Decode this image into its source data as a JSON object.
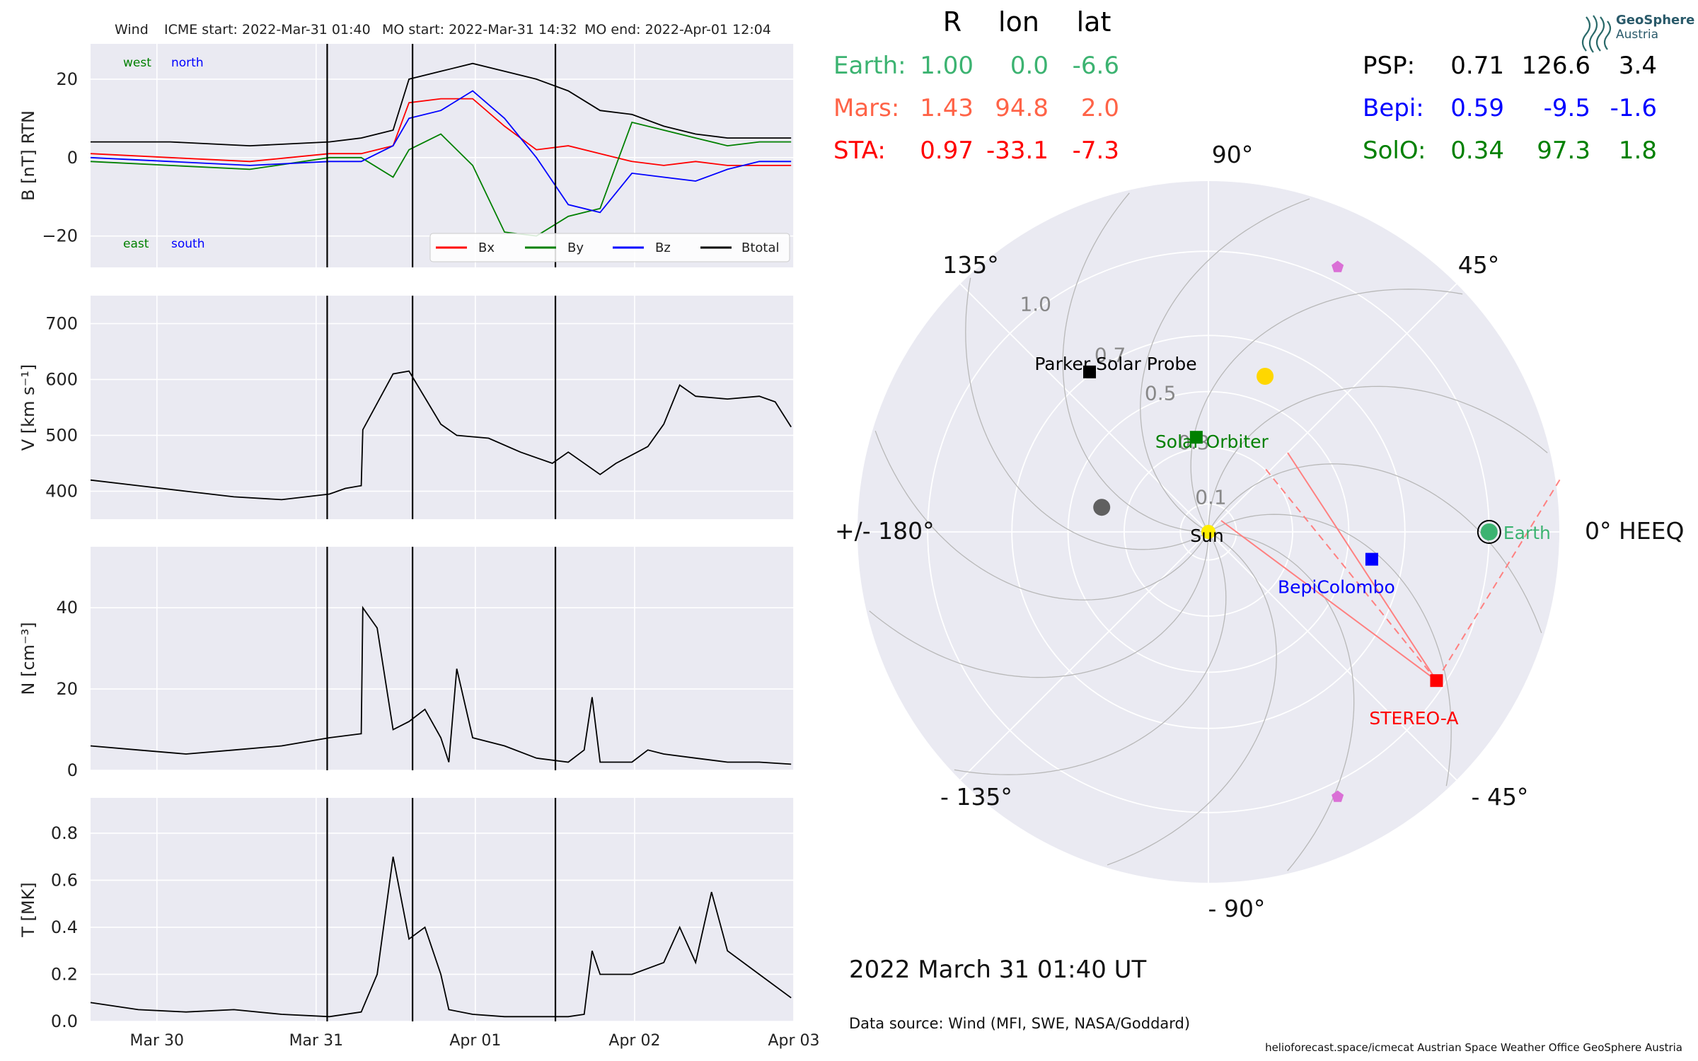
{
  "figure": {
    "header": {
      "spacecraft": "Wind",
      "icme_start": "ICME start: 2022-Mar-31 01:40",
      "mo_start": "MO start: 2022-Mar-31 14:32",
      "mo_end": "MO end: 2022-Apr-01 12:04"
    },
    "date_ticks": [
      "Mar 30",
      "Mar 31",
      "Apr 01",
      "Apr 02",
      "Apr 03"
    ],
    "event_lines": [
      "2022-03-31T01:40",
      "2022-03-31T14:32",
      "2022-04-01T12:04"
    ],
    "timestamp": "2022 March 31  01:40 UT",
    "data_source": "Data source: Wind (MFI, SWE, NASA/Goddard)",
    "footer": "helioforecast.space/icmecat   Austrian Space Weather Office   GeoSphere Austria",
    "logo": {
      "line1": "GeoSphere",
      "line2": "Austria"
    }
  },
  "position_table": {
    "headers": [
      "R",
      "lon",
      "lat"
    ],
    "rows_left": [
      {
        "name": "Earth:",
        "R": "1.00",
        "lon": "0.0",
        "lat": "-6.6",
        "color": "#3cb371"
      },
      {
        "name": "Mars:",
        "R": "1.43",
        "lon": "94.8",
        "lat": "2.0",
        "color": "#ff6347"
      },
      {
        "name": "STA:",
        "R": "0.97",
        "lon": "-33.1",
        "lat": "-7.3",
        "color": "#ff0000"
      }
    ],
    "rows_right": [
      {
        "name": "PSP:",
        "R": "0.71",
        "lon": "126.6",
        "lat": "3.4",
        "color": "#000000"
      },
      {
        "name": "Bepi:",
        "R": "0.59",
        "lon": "-9.5",
        "lat": "-1.6",
        "color": "#0000ff"
      },
      {
        "name": "SolO:",
        "R": "0.34",
        "lon": "97.3",
        "lat": "1.8",
        "color": "#008000"
      }
    ]
  },
  "chart_data": [
    {
      "type": "line",
      "ylabel": "B [nT] RTN",
      "ylim": [
        -28,
        29
      ],
      "yticks": [
        "20",
        "0",
        "−20"
      ],
      "corner_labels": {
        "west": "west",
        "north": "north",
        "east": "east",
        "south": "south"
      },
      "legend": [
        "Bx",
        "By",
        "Bz",
        "Btotal"
      ],
      "xrange": [
        "2022-03-29T14:00",
        "2022-04-03T00:00"
      ],
      "series": [
        {
          "name": "Bx",
          "color": "#ff0000",
          "x_days": [
            0,
            0.5,
            1,
            1.5,
            1.7,
            1.9,
            2,
            2.2,
            2.4,
            2.6,
            2.8,
            3,
            3.2,
            3.4,
            3.6,
            3.8,
            4,
            4.2,
            4.4
          ],
          "values": [
            1,
            0,
            -1,
            1,
            1,
            3,
            14,
            15,
            15,
            8,
            2,
            3,
            1,
            -1,
            -2,
            -1,
            -2,
            -2,
            -2
          ]
        },
        {
          "name": "By",
          "color": "#008000",
          "x_days": [
            0,
            0.5,
            1,
            1.5,
            1.7,
            1.9,
            2,
            2.2,
            2.4,
            2.6,
            2.8,
            3,
            3.2,
            3.4,
            3.6,
            3.8,
            4,
            4.2,
            4.4
          ],
          "values": [
            -1,
            -2,
            -3,
            0,
            0,
            -5,
            2,
            6,
            -2,
            -19,
            -20,
            -15,
            -13,
            9,
            7,
            5,
            3,
            4,
            4
          ]
        },
        {
          "name": "Bz",
          "color": "#0000ff",
          "x_days": [
            0,
            0.5,
            1,
            1.5,
            1.7,
            1.9,
            2,
            2.2,
            2.4,
            2.6,
            2.8,
            3,
            3.2,
            3.4,
            3.6,
            3.8,
            4,
            4.2,
            4.4
          ],
          "values": [
            0,
            -1,
            -2,
            -1,
            -1,
            3,
            10,
            12,
            17,
            10,
            0,
            -12,
            -14,
            -4,
            -5,
            -6,
            -3,
            -1,
            -1
          ]
        },
        {
          "name": "Btotal",
          "color": "#000000",
          "x_days": [
            0,
            0.5,
            1,
            1.5,
            1.7,
            1.9,
            2,
            2.2,
            2.4,
            2.6,
            2.8,
            3,
            3.2,
            3.4,
            3.6,
            3.8,
            4,
            4.2,
            4.4
          ],
          "values": [
            4,
            4,
            3,
            4,
            5,
            7,
            20,
            22,
            24,
            22,
            20,
            17,
            12,
            11,
            8,
            6,
            5,
            5,
            5
          ]
        }
      ]
    },
    {
      "type": "line",
      "ylabel": "V [km s⁻¹]",
      "ylim": [
        350,
        750
      ],
      "yticks": [
        "700",
        "600",
        "500",
        "400"
      ],
      "series": [
        {
          "name": "",
          "color": "#000000",
          "x_days": [
            0,
            0.3,
            0.6,
            0.9,
            1.2,
            1.5,
            1.6,
            1.7,
            1.71,
            1.9,
            2.0,
            2.2,
            2.3,
            2.5,
            2.7,
            2.9,
            3.0,
            3.2,
            3.3,
            3.5,
            3.6,
            3.7,
            3.8,
            4.0,
            4.2,
            4.3,
            4.4
          ],
          "values": [
            420,
            410,
            400,
            390,
            385,
            395,
            405,
            410,
            510,
            610,
            615,
            520,
            500,
            495,
            470,
            450,
            470,
            430,
            450,
            480,
            520,
            590,
            570,
            565,
            570,
            560,
            515
          ]
        }
      ]
    },
    {
      "type": "line",
      "ylabel": "N [cm⁻³]",
      "ylim": [
        0,
        55
      ],
      "yticks": [
        "40",
        "20",
        "0"
      ],
      "series": [
        {
          "name": "",
          "color": "#000000",
          "x_days": [
            0,
            0.3,
            0.6,
            0.9,
            1.2,
            1.5,
            1.7,
            1.71,
            1.8,
            1.9,
            2.0,
            2.1,
            2.2,
            2.25,
            2.3,
            2.4,
            2.6,
            2.8,
            3.0,
            3.1,
            3.15,
            3.2,
            3.4,
            3.5,
            3.6,
            3.8,
            4.0,
            4.2,
            4.4
          ],
          "values": [
            6,
            5,
            4,
            5,
            6,
            8,
            9,
            40,
            35,
            10,
            12,
            15,
            8,
            2,
            25,
            8,
            6,
            3,
            2,
            5,
            18,
            2,
            2,
            5,
            4,
            3,
            2,
            2,
            1.5
          ]
        }
      ]
    },
    {
      "type": "line",
      "ylabel": "T [MK]",
      "ylim": [
        0,
        0.95
      ],
      "yticks": [
        "0.8",
        "0.6",
        "0.4",
        "0.2",
        "0.0"
      ],
      "series": [
        {
          "name": "",
          "color": "#000000",
          "x_days": [
            0,
            0.3,
            0.6,
            0.9,
            1.2,
            1.5,
            1.7,
            1.8,
            1.9,
            2.0,
            2.1,
            2.2,
            2.25,
            2.4,
            2.6,
            2.8,
            3.0,
            3.1,
            3.15,
            3.2,
            3.4,
            3.6,
            3.7,
            3.8,
            3.9,
            4.0,
            4.2,
            4.4
          ],
          "values": [
            0.08,
            0.05,
            0.04,
            0.05,
            0.03,
            0.02,
            0.04,
            0.2,
            0.7,
            0.35,
            0.4,
            0.2,
            0.05,
            0.03,
            0.02,
            0.02,
            0.02,
            0.03,
            0.3,
            0.2,
            0.2,
            0.25,
            0.4,
            0.25,
            0.55,
            0.3,
            0.2,
            0.1
          ]
        }
      ]
    },
    {
      "type": "scatter",
      "subtype": "polar",
      "angle_labels": [
        "0° HEEQ",
        "45°",
        "90°",
        "135°",
        "+/- 180°",
        "- 135°",
        "- 90°",
        "- 45°"
      ],
      "radial_labels": [
        "1.0",
        "0.7",
        "0.5",
        "0.3",
        "0.1"
      ],
      "rmax": 1.25,
      "bodies": [
        {
          "name": "Sun",
          "r": 0.0,
          "lon": 0,
          "shape": "circle",
          "color": "#ffee00"
        },
        {
          "name": "Earth",
          "r": 1.0,
          "lon": 0.0,
          "shape": "circle",
          "color": "#3cb371"
        },
        {
          "name": "",
          "r": 0.59,
          "lon": 70,
          "shape": "circle",
          "color": "#ffd700"
        },
        {
          "name": "",
          "r": 0.39,
          "lon": 167,
          "shape": "circle",
          "color": "#606060"
        },
        {
          "name": "",
          "r": 1.05,
          "lon": 64,
          "shape": "pentagon",
          "color": "#da70d6"
        },
        {
          "name": "",
          "r": 1.05,
          "lon": -64,
          "shape": "pentagon",
          "color": "#da70d6"
        },
        {
          "name": "Parker Solar Probe",
          "r": 0.71,
          "lon": 126.6,
          "shape": "square",
          "color": "#000000"
        },
        {
          "name": "BepiColombo",
          "r": 0.59,
          "lon": -9.5,
          "shape": "square",
          "color": "#0000ff"
        },
        {
          "name": "Solar Orbiter",
          "r": 0.34,
          "lon": 97.3,
          "shape": "square",
          "color": "#008000"
        },
        {
          "name": "STEREO-A",
          "r": 0.97,
          "lon": -33.1,
          "shape": "square",
          "color": "#ff0000"
        }
      ]
    }
  ]
}
